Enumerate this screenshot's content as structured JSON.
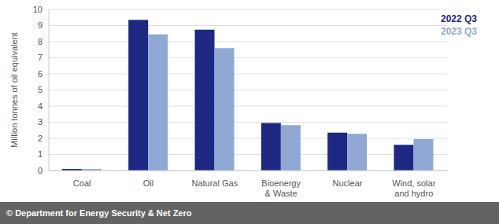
{
  "chart_data": {
    "type": "bar",
    "categories": [
      "Coal",
      "Oil",
      "Natural Gas",
      "Bioenergy\n& Waste",
      "Nuclear",
      "Wind, solar\nand hydro"
    ],
    "series": [
      {
        "name": "2022 Q3",
        "color": "#1c2882",
        "values": [
          0.1,
          9.35,
          8.75,
          2.95,
          2.35,
          1.6
        ]
      },
      {
        "name": "2023 Q3",
        "color": "#8fa8d4",
        "values": [
          0.1,
          8.45,
          7.6,
          2.82,
          2.28,
          1.95
        ]
      }
    ],
    "ylabel": "Million tonnes of oil equivalent",
    "ylim": [
      0,
      10
    ],
    "yticks": [
      0,
      1,
      2,
      3,
      4,
      5,
      6,
      7,
      8,
      9,
      10
    ],
    "grid": true,
    "legend": "upper right",
    "annotations": [
      "© Department for Energy Security & Net Zero"
    ]
  }
}
